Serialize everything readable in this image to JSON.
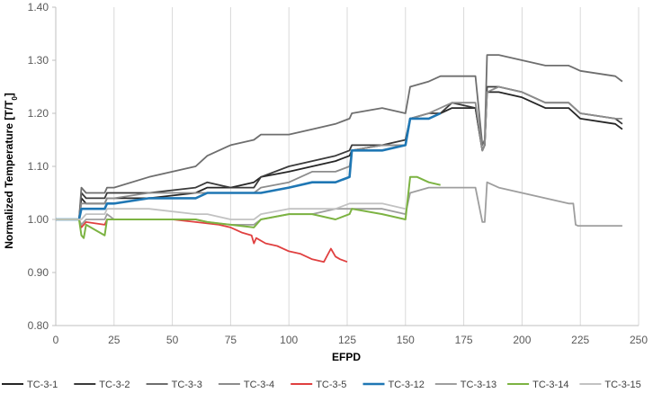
{
  "chart_data": {
    "type": "line",
    "title": "",
    "xlabel": "EFPD",
    "ylabel": "Normalized Temperature [T/T",
    "ylabel_sub": "0",
    "ylabel_end": "]",
    "xlim": [
      0,
      250
    ],
    "ylim": [
      0.8,
      1.4
    ],
    "xticks": [
      0,
      25,
      50,
      75,
      100,
      125,
      150,
      175,
      200,
      225,
      250
    ],
    "yticks": [
      "0.80",
      "0.90",
      "1.00",
      "1.10",
      "1.20",
      "1.30",
      "1.40"
    ],
    "grid": "vertical",
    "legend_position": "bottom",
    "series": [
      {
        "name": "TC-3-1",
        "color": "#262626",
        "x": [
          0,
          10,
          11,
          13,
          21,
          22,
          25,
          40,
          60,
          65,
          75,
          85,
          88,
          100,
          110,
          120,
          126,
          127,
          140,
          150,
          152,
          160,
          165,
          170,
          180,
          183,
          184,
          185,
          190,
          200,
          210,
          220,
          225,
          240,
          243
        ],
        "y": [
          1.0,
          1.0,
          1.04,
          1.03,
          1.03,
          1.04,
          1.04,
          1.04,
          1.05,
          1.06,
          1.06,
          1.07,
          1.08,
          1.09,
          1.1,
          1.11,
          1.12,
          1.13,
          1.14,
          1.14,
          1.19,
          1.19,
          1.2,
          1.21,
          1.21,
          1.13,
          1.14,
          1.24,
          1.24,
          1.23,
          1.21,
          1.21,
          1.19,
          1.18,
          1.17
        ]
      },
      {
        "name": "TC-3-2",
        "color": "#3a3a3a",
        "x": [
          0,
          10,
          11,
          13,
          21,
          22,
          25,
          40,
          60,
          65,
          75,
          85,
          88,
          100,
          110,
          120,
          126,
          127,
          140,
          150,
          152,
          160,
          165,
          170,
          180,
          183,
          184,
          185,
          190,
          200,
          210,
          220,
          225,
          240,
          243
        ],
        "y": [
          1.0,
          1.0,
          1.05,
          1.04,
          1.04,
          1.05,
          1.05,
          1.05,
          1.06,
          1.07,
          1.06,
          1.06,
          1.08,
          1.1,
          1.11,
          1.12,
          1.13,
          1.14,
          1.14,
          1.15,
          1.19,
          1.2,
          1.2,
          1.22,
          1.21,
          1.13,
          1.14,
          1.25,
          1.25,
          1.24,
          1.22,
          1.22,
          1.2,
          1.19,
          1.18
        ]
      },
      {
        "name": "TC-3-3",
        "color": "#6e6e6e",
        "x": [
          0,
          10,
          11,
          13,
          21,
          22,
          25,
          40,
          60,
          65,
          75,
          85,
          88,
          100,
          110,
          120,
          126,
          127,
          140,
          150,
          152,
          160,
          165,
          170,
          180,
          183,
          184,
          185,
          190,
          200,
          210,
          220,
          225,
          240,
          243
        ],
        "y": [
          1.0,
          1.0,
          1.06,
          1.05,
          1.05,
          1.06,
          1.06,
          1.08,
          1.1,
          1.12,
          1.14,
          1.15,
          1.16,
          1.16,
          1.17,
          1.18,
          1.19,
          1.2,
          1.21,
          1.2,
          1.25,
          1.26,
          1.27,
          1.27,
          1.27,
          1.14,
          1.15,
          1.31,
          1.31,
          1.3,
          1.29,
          1.29,
          1.28,
          1.27,
          1.26
        ]
      },
      {
        "name": "TC-3-4",
        "color": "#8c8c8c",
        "x": [
          0,
          10,
          11,
          13,
          21,
          22,
          25,
          40,
          60,
          65,
          75,
          85,
          88,
          100,
          110,
          120,
          126,
          127,
          140,
          150,
          152,
          160,
          165,
          170,
          180,
          183,
          184,
          185,
          190,
          200,
          210,
          220,
          225,
          240,
          243
        ],
        "y": [
          1.0,
          1.0,
          1.03,
          1.03,
          1.03,
          1.04,
          1.04,
          1.05,
          1.05,
          1.05,
          1.05,
          1.05,
          1.06,
          1.07,
          1.09,
          1.09,
          1.1,
          1.13,
          1.14,
          1.14,
          1.19,
          1.2,
          1.21,
          1.22,
          1.22,
          1.13,
          1.14,
          1.24,
          1.25,
          1.24,
          1.22,
          1.22,
          1.2,
          1.19,
          1.19
        ]
      },
      {
        "name": "TC-3-5",
        "color": "#e04040",
        "x": [
          0,
          10,
          11,
          12,
          13,
          21,
          22,
          30,
          40,
          50,
          60,
          70,
          75,
          80,
          84,
          85,
          86,
          90,
          95,
          100,
          105,
          110,
          115,
          118,
          120,
          122,
          125
        ],
        "y": [
          1.0,
          1.0,
          0.985,
          0.99,
          0.995,
          0.99,
          1.0,
          1.0,
          1.0,
          1.0,
          0.995,
          0.99,
          0.985,
          0.975,
          0.97,
          0.955,
          0.965,
          0.955,
          0.95,
          0.94,
          0.935,
          0.925,
          0.92,
          0.945,
          0.93,
          0.925,
          0.92
        ]
      },
      {
        "name": "TC-3-12",
        "color": "#1f77b4",
        "x": [
          0,
          10,
          11,
          13,
          21,
          22,
          25,
          40,
          60,
          65,
          75,
          85,
          88,
          100,
          110,
          120,
          126,
          127,
          140,
          150,
          152,
          160,
          165
        ],
        "y": [
          1.0,
          1.0,
          1.02,
          1.02,
          1.02,
          1.03,
          1.03,
          1.04,
          1.04,
          1.05,
          1.05,
          1.05,
          1.05,
          1.06,
          1.07,
          1.07,
          1.08,
          1.13,
          1.13,
          1.14,
          1.19,
          1.19,
          1.2
        ]
      },
      {
        "name": "TC-3-13",
        "color": "#9e9e9e",
        "x": [
          0,
          10,
          11,
          13,
          21,
          22,
          25,
          40,
          60,
          65,
          75,
          85,
          88,
          100,
          110,
          120,
          126,
          127,
          140,
          150,
          152,
          160,
          165,
          170,
          180,
          183,
          184,
          185,
          190,
          200,
          210,
          220,
          222,
          223,
          224,
          240,
          243
        ],
        "y": [
          1.0,
          1.0,
          0.99,
          1.0,
          1.0,
          1.01,
          1.0,
          1.0,
          1.0,
          0.995,
          0.99,
          0.99,
          1.0,
          1.01,
          1.01,
          1.02,
          1.02,
          1.02,
          1.02,
          1.01,
          1.05,
          1.06,
          1.06,
          1.06,
          1.06,
          0.995,
          0.995,
          1.07,
          1.06,
          1.05,
          1.04,
          1.03,
          1.03,
          0.99,
          0.988,
          0.988,
          0.988
        ]
      },
      {
        "name": "TC-3-14",
        "color": "#7cb342",
        "x": [
          0,
          10,
          11,
          12,
          13,
          21,
          22,
          25,
          40,
          60,
          65,
          75,
          85,
          88,
          100,
          110,
          120,
          126,
          127,
          140,
          150,
          152,
          155,
          160,
          165
        ],
        "y": [
          1.0,
          1.0,
          0.97,
          0.965,
          0.99,
          0.97,
          1.0,
          1.0,
          1.0,
          1.0,
          0.995,
          0.99,
          0.985,
          1.0,
          1.01,
          1.01,
          1.0,
          1.01,
          1.02,
          1.01,
          1.0,
          1.08,
          1.08,
          1.07,
          1.065
        ]
      },
      {
        "name": "TC-3-15",
        "color": "#c2c2c2",
        "x": [
          0,
          10,
          11,
          13,
          21,
          22,
          25,
          40,
          60,
          65,
          75,
          85,
          88,
          100,
          110,
          120,
          126,
          127,
          140,
          150
        ],
        "y": [
          1.0,
          1.0,
          1.0,
          1.01,
          1.01,
          1.02,
          1.02,
          1.02,
          1.01,
          1.01,
          1.0,
          1.0,
          1.01,
          1.02,
          1.02,
          1.02,
          1.03,
          1.03,
          1.03,
          1.02
        ]
      }
    ]
  }
}
